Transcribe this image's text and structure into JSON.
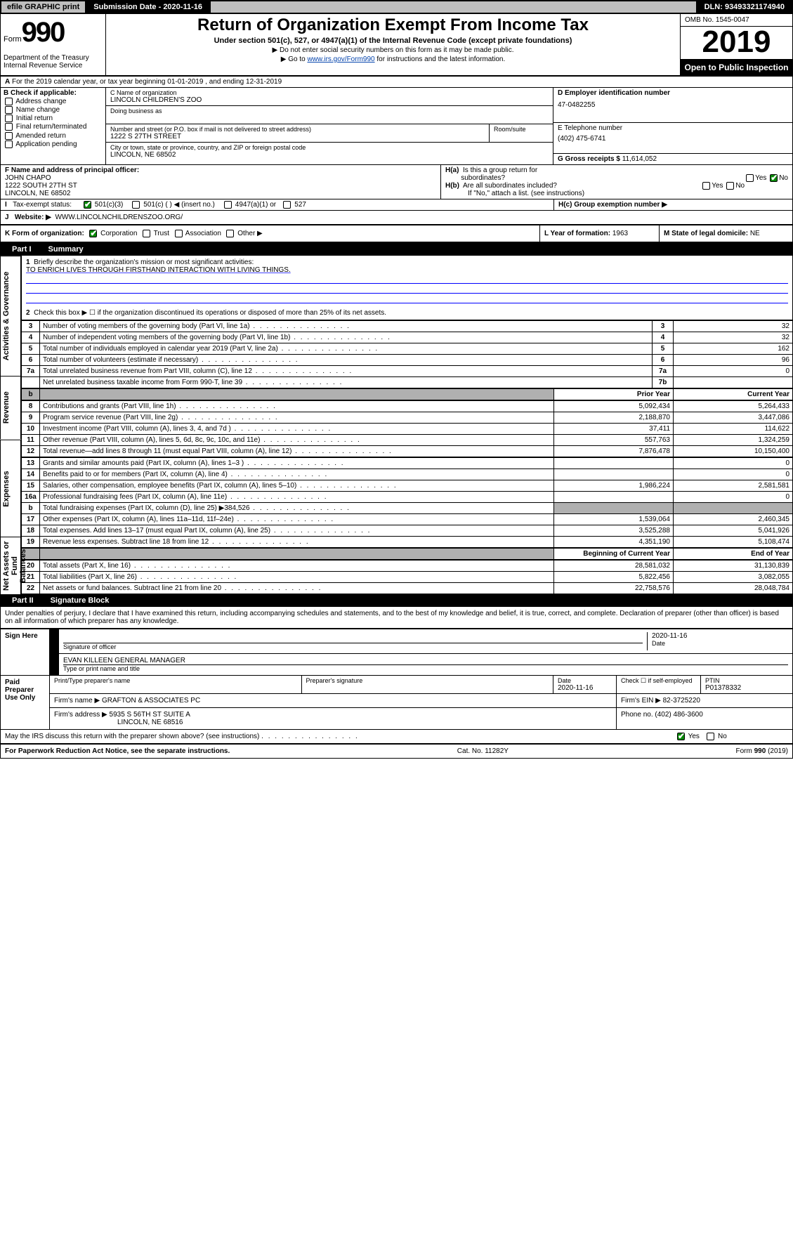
{
  "topbar": {
    "efile": "efile GRAPHIC print",
    "submission": "Submission Date - 2020-11-16",
    "dln": "DLN: 93493321174940"
  },
  "header": {
    "form_label": "Form",
    "form_number": "990",
    "dept": "Department of the Treasury\nInternal Revenue Service",
    "title": "Return of Organization Exempt From Income Tax",
    "sub": "Under section 501(c), 527, or 4947(a)(1) of the Internal Revenue Code (except private foundations)",
    "info1": "Do not enter social security numbers on this form as it may be made public.",
    "info2_pre": "Go to ",
    "info2_link": "www.irs.gov/Form990",
    "info2_post": " for instructions and the latest information.",
    "omb": "OMB No. 1545-0047",
    "year": "2019",
    "open": "Open to Public Inspection"
  },
  "rowA": "For the 2019 calendar year, or tax year beginning 01-01-2019   , and ending 12-31-2019",
  "boxB": {
    "label": "B Check if applicable:",
    "items": [
      "Address change",
      "Name change",
      "Initial return",
      "Final return/terminated",
      "Amended return",
      "Application pending"
    ]
  },
  "boxC": {
    "name_label": "C Name of organization",
    "name": "LINCOLN CHILDREN'S ZOO",
    "dba_label": "Doing business as",
    "addr_label": "Number and street (or P.O. box if mail is not delivered to street address)",
    "addr": "1222 S 27TH STREET",
    "room_label": "Room/suite",
    "city_label": "City or town, state or province, country, and ZIP or foreign postal code",
    "city": "LINCOLN, NE  68502"
  },
  "boxD": {
    "label": "D Employer identification number",
    "val": "47-0482255"
  },
  "boxE": {
    "label": "E Telephone number",
    "val": "(402) 475-6741"
  },
  "boxG": {
    "label": "G Gross receipts $",
    "val": "11,614,052"
  },
  "boxF": {
    "label": "F  Name and address of principal officer:",
    "name": "JOHN CHAPO",
    "addr1": "1222 SOUTH 27TH ST",
    "addr2": "LINCOLN, NE  68502"
  },
  "boxH": {
    "a_label": "H(a)  Is this a group return for subordinates?",
    "b_label": "H(b)  Are all subordinates included?",
    "b_note": "If \"No,\" attach a list. (see instructions)",
    "c_label": "H(c)  Group exemption number ▶"
  },
  "boxI": {
    "label": "Tax-exempt status:",
    "opts": [
      "501(c)(3)",
      "501(c) (  ) ◀ (insert no.)",
      "4947(a)(1) or",
      "527"
    ]
  },
  "boxJ": {
    "label": "Website: ▶",
    "val": "WWW.LINCOLNCHILDRENSZOO.ORG/"
  },
  "boxK": {
    "label": "K Form of organization:",
    "opts": [
      "Corporation",
      "Trust",
      "Association",
      "Other ▶"
    ]
  },
  "boxL": {
    "label": "L Year of formation:",
    "val": "1963"
  },
  "boxM": {
    "label": "M State of legal domicile:",
    "val": "NE"
  },
  "part1": {
    "tab": "Part I",
    "title": "Summary"
  },
  "summary": {
    "line1_label": "Briefly describe the organization's mission or most significant activities:",
    "line1_val": "TO ENRICH LIVES THROUGH FIRSTHAND INTERACTION WITH LIVING THINGS.",
    "line2": "Check this box ▶ ☐  if the organization discontinued its operations or disposed of more than 25% of its net assets.",
    "rows_a": [
      {
        "n": "3",
        "desc": "Number of voting members of the governing body (Part VI, line 1a)",
        "ln": "3",
        "v": "32"
      },
      {
        "n": "4",
        "desc": "Number of independent voting members of the governing body (Part VI, line 1b)",
        "ln": "4",
        "v": "32"
      },
      {
        "n": "5",
        "desc": "Total number of individuals employed in calendar year 2019 (Part V, line 2a)",
        "ln": "5",
        "v": "162"
      },
      {
        "n": "6",
        "desc": "Total number of volunteers (estimate if necessary)",
        "ln": "6",
        "v": "96"
      },
      {
        "n": "7a",
        "desc": "Total unrelated business revenue from Part VIII, column (C), line 12",
        "ln": "7a",
        "v": "0"
      },
      {
        "n": "",
        "desc": "Net unrelated business taxable income from Form 990-T, line 39",
        "ln": "7b",
        "v": ""
      }
    ],
    "hdr_b": "b",
    "hdr_prior": "Prior Year",
    "hdr_curr": "Current Year",
    "rows_rev": [
      {
        "n": "8",
        "desc": "Contributions and grants (Part VIII, line 1h)",
        "p": "5,092,434",
        "c": "5,264,433"
      },
      {
        "n": "9",
        "desc": "Program service revenue (Part VIII, line 2g)",
        "p": "2,188,870",
        "c": "3,447,086"
      },
      {
        "n": "10",
        "desc": "Investment income (Part VIII, column (A), lines 3, 4, and 7d )",
        "p": "37,411",
        "c": "114,622"
      },
      {
        "n": "11",
        "desc": "Other revenue (Part VIII, column (A), lines 5, 6d, 8c, 9c, 10c, and 11e)",
        "p": "557,763",
        "c": "1,324,259"
      },
      {
        "n": "12",
        "desc": "Total revenue—add lines 8 through 11 (must equal Part VIII, column (A), line 12)",
        "p": "7,876,478",
        "c": "10,150,400"
      }
    ],
    "rows_exp": [
      {
        "n": "13",
        "desc": "Grants and similar amounts paid (Part IX, column (A), lines 1–3 )",
        "p": "",
        "c": "0"
      },
      {
        "n": "14",
        "desc": "Benefits paid to or for members (Part IX, column (A), line 4)",
        "p": "",
        "c": "0"
      },
      {
        "n": "15",
        "desc": "Salaries, other compensation, employee benefits (Part IX, column (A), lines 5–10)",
        "p": "1,986,224",
        "c": "2,581,581"
      },
      {
        "n": "16a",
        "desc": "Professional fundraising fees (Part IX, column (A), line 11e)",
        "p": "",
        "c": "0"
      },
      {
        "n": "b",
        "desc": "Total fundraising expenses (Part IX, column (D), line 25) ▶384,526",
        "p": "SHADE",
        "c": "SHADE"
      },
      {
        "n": "17",
        "desc": "Other expenses (Part IX, column (A), lines 11a–11d, 11f–24e)",
        "p": "1,539,064",
        "c": "2,460,345"
      },
      {
        "n": "18",
        "desc": "Total expenses. Add lines 13–17 (must equal Part IX, column (A), line 25)",
        "p": "3,525,288",
        "c": "5,041,926"
      },
      {
        "n": "19",
        "desc": "Revenue less expenses. Subtract line 18 from line 12",
        "p": "4,351,190",
        "c": "5,108,474"
      }
    ],
    "hdr_beg": "Beginning of Current Year",
    "hdr_end": "End of Year",
    "rows_net": [
      {
        "n": "20",
        "desc": "Total assets (Part X, line 16)",
        "p": "28,581,032",
        "c": "31,130,839"
      },
      {
        "n": "21",
        "desc": "Total liabilities (Part X, line 26)",
        "p": "5,822,456",
        "c": "3,082,055"
      },
      {
        "n": "22",
        "desc": "Net assets or fund balances. Subtract line 21 from line 20",
        "p": "22,758,576",
        "c": "28,048,784"
      }
    ]
  },
  "sidelabels": {
    "gov": "Activities & Governance",
    "rev": "Revenue",
    "exp": "Expenses",
    "net": "Net Assets or Fund Balances"
  },
  "part2": {
    "tab": "Part II",
    "title": "Signature Block",
    "decl": "Under penalties of perjury, I declare that I have examined this return, including accompanying schedules and statements, and to the best of my knowledge and belief, it is true, correct, and complete. Declaration of preparer (other than officer) is based on all information of which preparer has any knowledge.",
    "sign_here": "Sign Here",
    "sig_officer": "Signature of officer",
    "date_val": "2020-11-16",
    "date_label": "Date",
    "officer_name": "EVAN KILLEEN  GENERAL MANAGER",
    "type_name": "Type or print name and title",
    "paid": "Paid Preparer Use Only",
    "prep_name_label": "Print/Type preparer's name",
    "prep_sig_label": "Preparer's signature",
    "prep_date_label": "Date",
    "prep_date": "2020-11-16",
    "check_self": "Check ☐ if self-employed",
    "ptin_label": "PTIN",
    "ptin": "P01378332",
    "firm_name_label": "Firm's name    ▶",
    "firm_name": "GRAFTON & ASSOCIATES PC",
    "firm_ein_label": "Firm's EIN ▶",
    "firm_ein": "82-3725220",
    "firm_addr_label": "Firm's address ▶",
    "firm_addr1": "5935 S 56TH ST SUITE A",
    "firm_addr2": "LINCOLN, NE  68516",
    "phone_label": "Phone no.",
    "phone": "(402) 486-3600",
    "discuss": "May the IRS discuss this return with the preparer shown above? (see instructions)"
  },
  "footer": {
    "left": "For Paperwork Reduction Act Notice, see the separate instructions.",
    "mid": "Cat. No. 11282Y",
    "right": "Form 990 (2019)"
  }
}
